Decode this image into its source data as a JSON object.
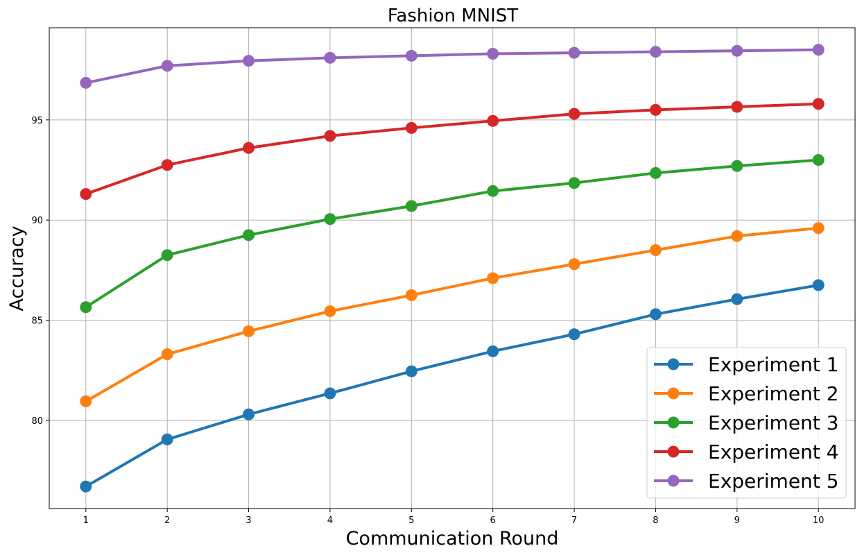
{
  "chart_data": {
    "type": "line",
    "title": "Fashion MNIST",
    "xlabel": "Communication Round",
    "ylabel": "Accuracy",
    "x": [
      1,
      2,
      3,
      4,
      5,
      6,
      7,
      8,
      9,
      10
    ],
    "xticks": [
      "1",
      "2",
      "3",
      "4",
      "5",
      "6",
      "7",
      "8",
      "9",
      "10"
    ],
    "yticks": [
      "80",
      "85",
      "90",
      "95"
    ],
    "ytick_values": [
      80,
      85,
      90,
      95
    ],
    "xlim": [
      0.55,
      10.45
    ],
    "ylim": [
      75.6,
      99.6
    ],
    "grid": true,
    "legend_position": "lower-right",
    "series": [
      {
        "name": "Experiment 1",
        "color": "#1f77b4",
        "values": [
          76.7,
          79.05,
          80.3,
          81.35,
          82.45,
          83.45,
          84.3,
          85.3,
          86.05,
          86.75
        ]
      },
      {
        "name": "Experiment 2",
        "color": "#ff7f0e",
        "values": [
          80.95,
          83.3,
          84.45,
          85.45,
          86.25,
          87.1,
          87.8,
          88.5,
          89.2,
          89.6
        ]
      },
      {
        "name": "Experiment 3",
        "color": "#2ca02c",
        "values": [
          85.65,
          88.25,
          89.25,
          90.05,
          90.7,
          91.45,
          91.85,
          92.35,
          92.7,
          93.0
        ]
      },
      {
        "name": "Experiment 4",
        "color": "#d62728",
        "values": [
          91.3,
          92.75,
          93.6,
          94.2,
          94.6,
          94.95,
          95.3,
          95.5,
          95.65,
          95.8
        ]
      },
      {
        "name": "Experiment 5",
        "color": "#9467bd",
        "values": [
          96.85,
          97.7,
          97.95,
          98.1,
          98.2,
          98.3,
          98.35,
          98.4,
          98.45,
          98.5
        ]
      }
    ]
  }
}
